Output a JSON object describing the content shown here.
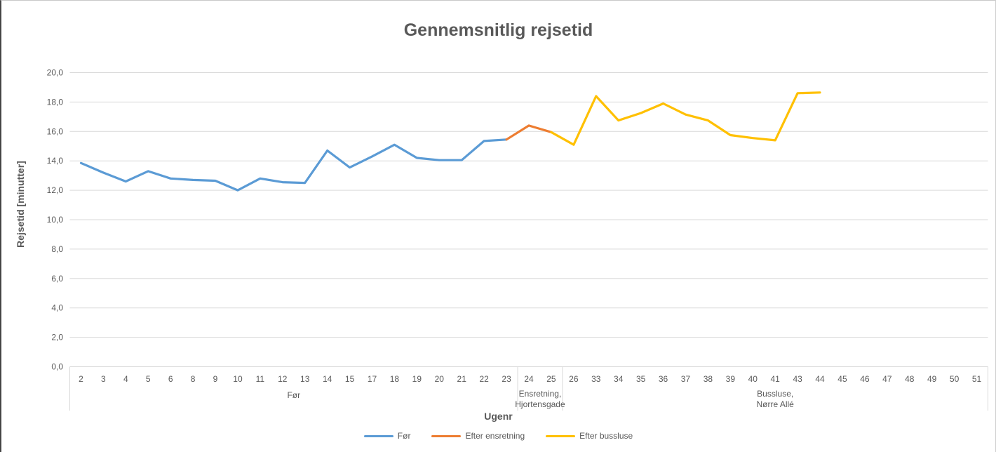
{
  "chart_data": {
    "type": "line",
    "title": "Gennemsnitlig rejsetid",
    "xlabel": "Ugenr",
    "ylabel": "Rejsetid [minutter]",
    "ylim": [
      0,
      20
    ],
    "ytick_step": 2,
    "ytick_labels": [
      "0,0",
      "2,0",
      "4,0",
      "6,0",
      "8,0",
      "10,0",
      "12,0",
      "14,0",
      "16,0",
      "18,0",
      "20,0"
    ],
    "grid": true,
    "gridline_color": "#d9d9d9",
    "text_color": "#595959",
    "categories": [
      "2",
      "3",
      "4",
      "5",
      "6",
      "8",
      "9",
      "10",
      "11",
      "12",
      "13",
      "14",
      "15",
      "17",
      "18",
      "19",
      "20",
      "21",
      "22",
      "23",
      "24",
      "25",
      "26",
      "33",
      "34",
      "35",
      "36",
      "37",
      "38",
      "39",
      "40",
      "41",
      "43",
      "44",
      "45",
      "46",
      "47",
      "48",
      "49",
      "50",
      "51"
    ],
    "category_groups": [
      {
        "label_lines": [
          "Før"
        ],
        "start": 0,
        "end": 19
      },
      {
        "label_lines": [
          "Ensretning,",
          "Hjortensgade"
        ],
        "start": 20,
        "end": 21
      },
      {
        "label_lines": [
          "Bussluse,",
          "Nørre Allé"
        ],
        "start": 22,
        "end": 40
      }
    ],
    "series": [
      {
        "name": "Før",
        "color": "#5b9bd5",
        "start_index": 0,
        "values": [
          13.85,
          13.2,
          12.6,
          13.3,
          12.8,
          12.7,
          12.65,
          12.0,
          12.8,
          12.55,
          12.5,
          14.7,
          13.55,
          14.3,
          15.1,
          14.2,
          14.05,
          14.05,
          15.35,
          15.45
        ]
      },
      {
        "name": "Efter ensretning",
        "color": "#ed7d31",
        "start_index": 19,
        "values": [
          15.45,
          16.4,
          15.95
        ]
      },
      {
        "name": "Efter bussluse",
        "color": "#ffc000",
        "start_index": 21,
        "values": [
          15.95,
          15.1,
          18.4,
          16.75,
          17.25,
          17.9,
          17.15,
          16.75,
          15.75,
          15.55,
          15.4,
          18.6,
          18.65
        ]
      }
    ],
    "legend": {
      "position": "bottom",
      "entries": [
        {
          "label": "Før",
          "color": "#5b9bd5"
        },
        {
          "label": "Efter ensretning",
          "color": "#ed7d31"
        },
        {
          "label": "Efter bussluse",
          "color": "#ffc000"
        }
      ]
    }
  }
}
